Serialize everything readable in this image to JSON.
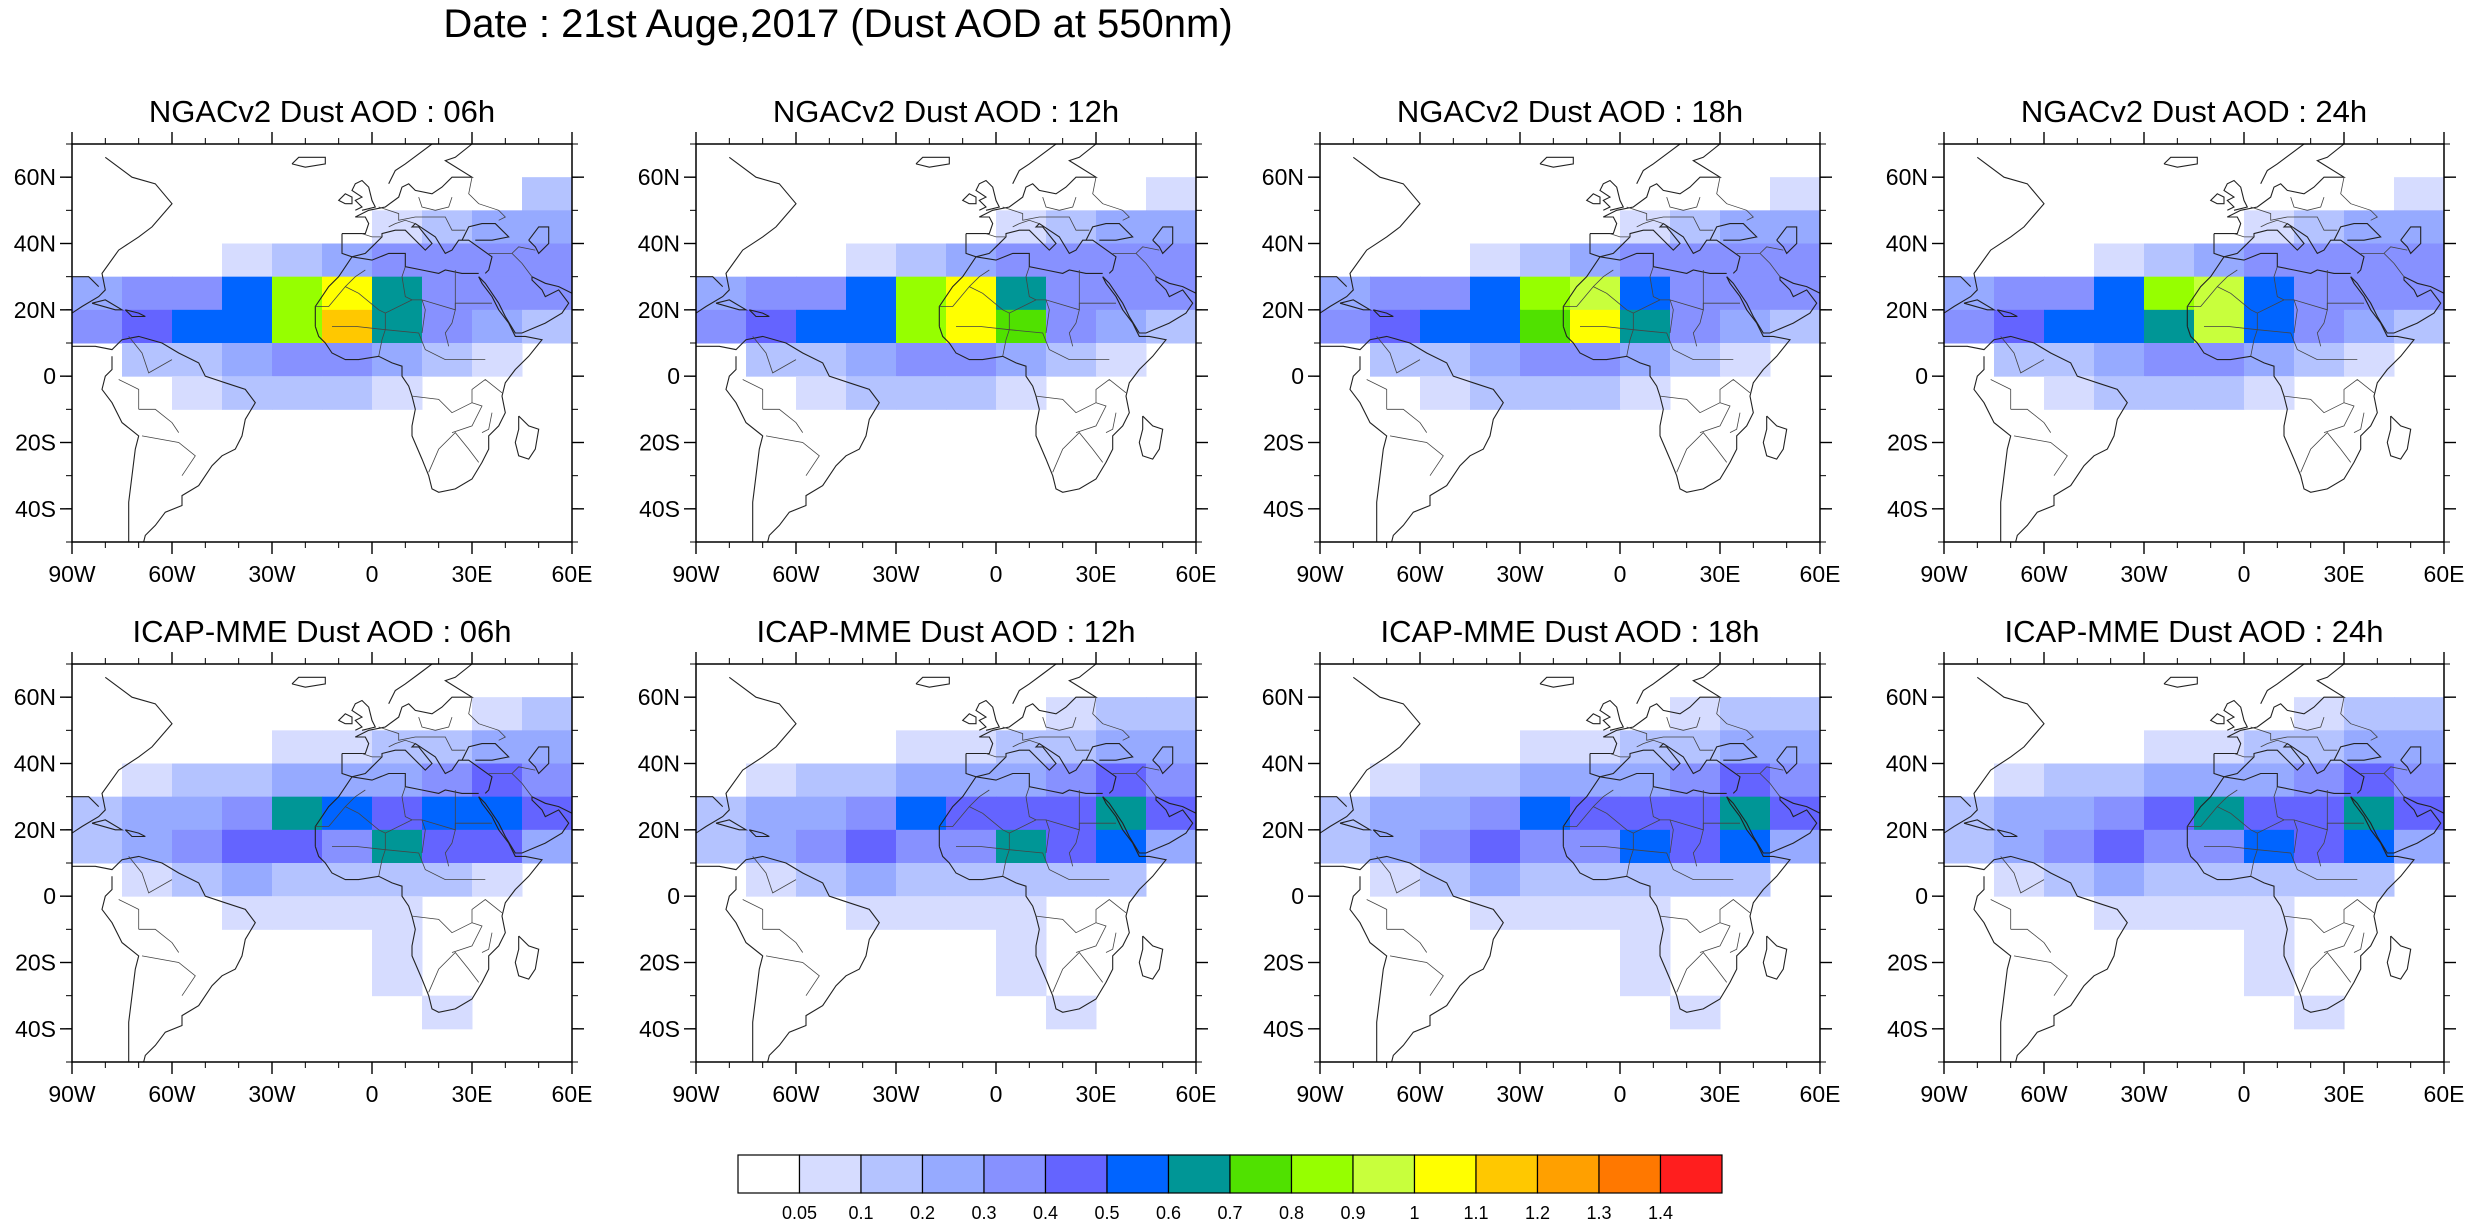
{
  "figure": {
    "title": "Date : 21st Auge,2017 (Dust AOD at 550nm)"
  },
  "panels": [
    {
      "title": "NGACv2 Dust AOD : 06h",
      "model": "NGACv2",
      "hour": "06h"
    },
    {
      "title": "NGACv2 Dust AOD : 12h",
      "model": "NGACv2",
      "hour": "12h"
    },
    {
      "title": "NGACv2 Dust AOD : 18h",
      "model": "NGACv2",
      "hour": "18h"
    },
    {
      "title": "NGACv2 Dust AOD : 24h",
      "model": "NGACv2",
      "hour": "24h"
    },
    {
      "title": "ICAP-MME Dust AOD : 06h",
      "model": "ICAP-MME",
      "hour": "06h"
    },
    {
      "title": "ICAP-MME Dust AOD : 12h",
      "model": "ICAP-MME",
      "hour": "12h"
    },
    {
      "title": "ICAP-MME Dust AOD : 18h",
      "model": "ICAP-MME",
      "hour": "18h"
    },
    {
      "title": "ICAP-MME Dust AOD : 24h",
      "model": "ICAP-MME",
      "hour": "24h"
    }
  ],
  "axes": {
    "lat_ticks": [
      "60N",
      "40N",
      "20N",
      "0",
      "20S",
      "40S"
    ],
    "lon_ticks": [
      "90W",
      "60W",
      "30W",
      "0",
      "30E",
      "60E"
    ],
    "lat_values": [
      60,
      40,
      20,
      0,
      -20,
      -40
    ],
    "lon_values": [
      -90,
      -60,
      -30,
      0,
      30,
      60
    ],
    "lat_range": [
      -50,
      70
    ],
    "lon_range": [
      -90,
      60
    ]
  },
  "colorbar": {
    "labels": [
      "0.05",
      "0.1",
      "0.2",
      "0.3",
      "0.4",
      "0.5",
      "0.6",
      "0.7",
      "0.8",
      "0.9",
      "1",
      "1.1",
      "1.2",
      "1.3",
      "1.4"
    ],
    "colors": [
      "#ffffff",
      "#d6dcff",
      "#b4c3ff",
      "#96aaff",
      "#8791ff",
      "#6464ff",
      "#0064ff",
      "#009696",
      "#50e100",
      "#96ff00",
      "#c8ff3c",
      "#ffff00",
      "#ffc800",
      "#ffa000",
      "#ff7800",
      "#ff1e1e"
    ]
  },
  "chart_data": {
    "type": "heatmap",
    "variable": "Dust AOD",
    "grid": {
      "lon_step": 15,
      "lat_step": 10,
      "lon_start": -90,
      "lat_rows_north_to_south": [
        65,
        55,
        45,
        35,
        25,
        15,
        5,
        -5,
        -15,
        -25,
        -35,
        -45
      ]
    },
    "fields": [
      [
        [
          0,
          0,
          0,
          0,
          0,
          0,
          0,
          0,
          0,
          0
        ],
        [
          0,
          0,
          0,
          0,
          0,
          0,
          0,
          0,
          0,
          0.1
        ],
        [
          0,
          0,
          0,
          0,
          0,
          0,
          0.05,
          0.1,
          0.2,
          0.2
        ],
        [
          0,
          0,
          0,
          0.05,
          0.1,
          0.2,
          0.3,
          0.3,
          0.3,
          0.3
        ],
        [
          0.2,
          0.3,
          0.3,
          0.5,
          0.8,
          1.0,
          0.6,
          0.3,
          0.3,
          0.3
        ],
        [
          0.3,
          0.4,
          0.5,
          0.5,
          0.8,
          1.1,
          0.6,
          0.3,
          0.2,
          0.1
        ],
        [
          0,
          0.1,
          0.1,
          0.2,
          0.3,
          0.3,
          0.2,
          0.1,
          0.05,
          0
        ],
        [
          0,
          0,
          0.05,
          0.1,
          0.1,
          0.1,
          0.05,
          0,
          0,
          0
        ],
        [
          0,
          0,
          0,
          0,
          0,
          0,
          0,
          0,
          0,
          0
        ],
        [
          0,
          0,
          0,
          0,
          0,
          0,
          0,
          0,
          0,
          0
        ],
        [
          0,
          0,
          0,
          0,
          0,
          0,
          0,
          0,
          0,
          0
        ],
        [
          0,
          0,
          0,
          0,
          0,
          0,
          0,
          0,
          0,
          0
        ]
      ],
      [
        [
          0,
          0,
          0,
          0,
          0,
          0,
          0,
          0,
          0,
          0
        ],
        [
          0,
          0,
          0,
          0,
          0,
          0,
          0,
          0,
          0,
          0.05
        ],
        [
          0,
          0,
          0,
          0,
          0,
          0,
          0.05,
          0.1,
          0.2,
          0.2
        ],
        [
          0,
          0,
          0,
          0.05,
          0.1,
          0.2,
          0.3,
          0.3,
          0.3,
          0.3
        ],
        [
          0.2,
          0.3,
          0.3,
          0.5,
          0.8,
          1.0,
          0.6,
          0.3,
          0.3,
          0.3
        ],
        [
          0.3,
          0.4,
          0.5,
          0.5,
          0.8,
          1.0,
          0.7,
          0.3,
          0.2,
          0.1
        ],
        [
          0,
          0.1,
          0.1,
          0.2,
          0.3,
          0.3,
          0.2,
          0.1,
          0.05,
          0
        ],
        [
          0,
          0,
          0.05,
          0.1,
          0.1,
          0.1,
          0.05,
          0,
          0,
          0
        ],
        [
          0,
          0,
          0,
          0,
          0,
          0,
          0,
          0,
          0,
          0
        ],
        [
          0,
          0,
          0,
          0,
          0,
          0,
          0,
          0,
          0,
          0
        ],
        [
          0,
          0,
          0,
          0,
          0,
          0,
          0,
          0,
          0,
          0
        ],
        [
          0,
          0,
          0,
          0,
          0,
          0,
          0,
          0,
          0,
          0
        ]
      ],
      [
        [
          0,
          0,
          0,
          0,
          0,
          0,
          0,
          0,
          0,
          0
        ],
        [
          0,
          0,
          0,
          0,
          0,
          0,
          0,
          0,
          0,
          0.05
        ],
        [
          0,
          0,
          0,
          0,
          0,
          0,
          0.05,
          0.1,
          0.2,
          0.2
        ],
        [
          0,
          0,
          0,
          0.05,
          0.1,
          0.2,
          0.3,
          0.3,
          0.3,
          0.3
        ],
        [
          0.2,
          0.3,
          0.3,
          0.5,
          0.8,
          0.9,
          0.5,
          0.3,
          0.3,
          0.3
        ],
        [
          0.3,
          0.4,
          0.5,
          0.5,
          0.7,
          1.0,
          0.6,
          0.3,
          0.2,
          0.1
        ],
        [
          0,
          0.1,
          0.1,
          0.2,
          0.3,
          0.3,
          0.2,
          0.1,
          0.05,
          0
        ],
        [
          0,
          0,
          0.05,
          0.1,
          0.1,
          0.1,
          0.05,
          0,
          0,
          0
        ],
        [
          0,
          0,
          0,
          0,
          0,
          0,
          0,
          0,
          0,
          0
        ],
        [
          0,
          0,
          0,
          0,
          0,
          0,
          0,
          0,
          0,
          0
        ],
        [
          0,
          0,
          0,
          0,
          0,
          0,
          0,
          0,
          0,
          0
        ],
        [
          0,
          0,
          0,
          0,
          0,
          0,
          0,
          0,
          0,
          0
        ]
      ],
      [
        [
          0,
          0,
          0,
          0,
          0,
          0,
          0,
          0,
          0,
          0
        ],
        [
          0,
          0,
          0,
          0,
          0,
          0,
          0,
          0,
          0,
          0.05
        ],
        [
          0,
          0,
          0,
          0,
          0,
          0,
          0.05,
          0.1,
          0.2,
          0.2
        ],
        [
          0,
          0,
          0,
          0.05,
          0.1,
          0.2,
          0.3,
          0.3,
          0.3,
          0.3
        ],
        [
          0.2,
          0.3,
          0.3,
          0.5,
          0.8,
          0.9,
          0.5,
          0.3,
          0.3,
          0.3
        ],
        [
          0.3,
          0.4,
          0.5,
          0.5,
          0.6,
          0.9,
          0.5,
          0.3,
          0.2,
          0.1
        ],
        [
          0,
          0.1,
          0.1,
          0.2,
          0.3,
          0.3,
          0.2,
          0.1,
          0.05,
          0
        ],
        [
          0,
          0,
          0.05,
          0.1,
          0.1,
          0.1,
          0.05,
          0,
          0,
          0
        ],
        [
          0,
          0,
          0,
          0,
          0,
          0,
          0,
          0,
          0,
          0
        ],
        [
          0,
          0,
          0,
          0,
          0,
          0,
          0,
          0,
          0,
          0
        ],
        [
          0,
          0,
          0,
          0,
          0,
          0,
          0,
          0,
          0,
          0
        ],
        [
          0,
          0,
          0,
          0,
          0,
          0,
          0,
          0,
          0,
          0
        ]
      ],
      [
        [
          0,
          0,
          0,
          0,
          0,
          0,
          0,
          0,
          0,
          0
        ],
        [
          0,
          0,
          0,
          0,
          0,
          0,
          0,
          0,
          0.05,
          0.1
        ],
        [
          0,
          0,
          0,
          0,
          0.05,
          0.05,
          0.1,
          0.1,
          0.2,
          0.2
        ],
        [
          0,
          0.05,
          0.1,
          0.1,
          0.2,
          0.2,
          0.2,
          0.3,
          0.4,
          0.3
        ],
        [
          0.1,
          0.2,
          0.2,
          0.3,
          0.6,
          0.5,
          0.4,
          0.5,
          0.5,
          0.4
        ],
        [
          0.1,
          0.2,
          0.3,
          0.4,
          0.4,
          0.3,
          0.6,
          0.4,
          0.4,
          0.2
        ],
        [
          0,
          0.05,
          0.1,
          0.2,
          0.1,
          0.1,
          0.1,
          0.1,
          0.05,
          0
        ],
        [
          0,
          0,
          0,
          0.05,
          0.05,
          0.05,
          0.05,
          0,
          0,
          0
        ],
        [
          0,
          0,
          0,
          0,
          0,
          0,
          0.05,
          0,
          0,
          0
        ],
        [
          0,
          0,
          0,
          0,
          0,
          0,
          0.05,
          0,
          0,
          0
        ],
        [
          0,
          0,
          0,
          0,
          0,
          0,
          0,
          0.05,
          0,
          0
        ],
        [
          0,
          0,
          0,
          0,
          0,
          0,
          0,
          0,
          0,
          0
        ]
      ],
      [
        [
          0,
          0,
          0,
          0,
          0,
          0,
          0,
          0,
          0,
          0
        ],
        [
          0,
          0,
          0,
          0,
          0,
          0,
          0,
          0.05,
          0.1,
          0.1
        ],
        [
          0,
          0,
          0,
          0,
          0.05,
          0.05,
          0.1,
          0.1,
          0.2,
          0.2
        ],
        [
          0,
          0.05,
          0.1,
          0.1,
          0.2,
          0.2,
          0.2,
          0.3,
          0.4,
          0.3
        ],
        [
          0.1,
          0.2,
          0.2,
          0.3,
          0.5,
          0.4,
          0.4,
          0.4,
          0.6,
          0.4
        ],
        [
          0.1,
          0.2,
          0.3,
          0.4,
          0.3,
          0.3,
          0.6,
          0.4,
          0.5,
          0.2
        ],
        [
          0,
          0.05,
          0.1,
          0.2,
          0.1,
          0.1,
          0.1,
          0.1,
          0.1,
          0
        ],
        [
          0,
          0,
          0,
          0.05,
          0.05,
          0.05,
          0.05,
          0,
          0,
          0
        ],
        [
          0,
          0,
          0,
          0,
          0,
          0,
          0.05,
          0,
          0,
          0
        ],
        [
          0,
          0,
          0,
          0,
          0,
          0,
          0.05,
          0,
          0,
          0
        ],
        [
          0,
          0,
          0,
          0,
          0,
          0,
          0,
          0.05,
          0,
          0
        ],
        [
          0,
          0,
          0,
          0,
          0,
          0,
          0,
          0,
          0,
          0
        ]
      ],
      [
        [
          0,
          0,
          0,
          0,
          0,
          0,
          0,
          0,
          0,
          0
        ],
        [
          0,
          0,
          0,
          0,
          0,
          0,
          0,
          0.05,
          0.1,
          0.1
        ],
        [
          0,
          0,
          0,
          0,
          0.05,
          0.05,
          0.1,
          0.1,
          0.2,
          0.2
        ],
        [
          0,
          0.05,
          0.1,
          0.1,
          0.2,
          0.2,
          0.2,
          0.3,
          0.4,
          0.3
        ],
        [
          0.1,
          0.2,
          0.2,
          0.3,
          0.5,
          0.4,
          0.4,
          0.4,
          0.6,
          0.4
        ],
        [
          0.1,
          0.2,
          0.3,
          0.4,
          0.3,
          0.3,
          0.5,
          0.4,
          0.5,
          0.2
        ],
        [
          0,
          0.05,
          0.1,
          0.2,
          0.1,
          0.1,
          0.1,
          0.1,
          0.1,
          0
        ],
        [
          0,
          0,
          0,
          0.05,
          0.05,
          0.05,
          0.05,
          0,
          0,
          0
        ],
        [
          0,
          0,
          0,
          0,
          0,
          0,
          0.05,
          0,
          0,
          0
        ],
        [
          0,
          0,
          0,
          0,
          0,
          0,
          0.05,
          0,
          0,
          0
        ],
        [
          0,
          0,
          0,
          0,
          0,
          0,
          0,
          0.05,
          0,
          0
        ],
        [
          0,
          0,
          0,
          0,
          0,
          0,
          0,
          0,
          0,
          0
        ]
      ],
      [
        [
          0,
          0,
          0,
          0,
          0,
          0,
          0,
          0,
          0,
          0
        ],
        [
          0,
          0,
          0,
          0,
          0,
          0,
          0,
          0.05,
          0.1,
          0.1
        ],
        [
          0,
          0,
          0,
          0,
          0.05,
          0.05,
          0.1,
          0.1,
          0.2,
          0.2
        ],
        [
          0,
          0.05,
          0.1,
          0.1,
          0.2,
          0.2,
          0.2,
          0.3,
          0.4,
          0.3
        ],
        [
          0.1,
          0.2,
          0.2,
          0.3,
          0.4,
          0.6,
          0.4,
          0.4,
          0.6,
          0.4
        ],
        [
          0.1,
          0.2,
          0.3,
          0.4,
          0.3,
          0.3,
          0.5,
          0.4,
          0.5,
          0.2
        ],
        [
          0,
          0.05,
          0.1,
          0.2,
          0.1,
          0.1,
          0.1,
          0.1,
          0.1,
          0
        ],
        [
          0,
          0,
          0,
          0.05,
          0.05,
          0.05,
          0.05,
          0,
          0,
          0
        ],
        [
          0,
          0,
          0,
          0,
          0,
          0,
          0.05,
          0,
          0,
          0
        ],
        [
          0,
          0,
          0,
          0,
          0,
          0,
          0.05,
          0,
          0,
          0
        ],
        [
          0,
          0,
          0,
          0,
          0,
          0,
          0,
          0.05,
          0,
          0
        ],
        [
          0,
          0,
          0,
          0,
          0,
          0,
          0,
          0,
          0,
          0
        ]
      ]
    ]
  }
}
